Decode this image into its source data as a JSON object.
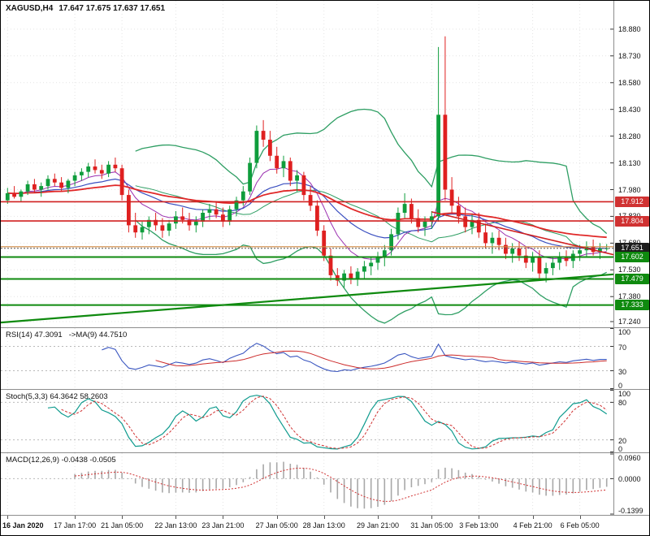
{
  "header": {
    "symbol_period": "XAGUSD,H4",
    "ohlc": "17.647 17.675 17.637 17.651"
  },
  "colors": {
    "background": "#ffffff",
    "grid": "#e4e4e4",
    "candle_up": "#0f9d3c",
    "candle_down": "#df2020",
    "separator": "#8e8e8e",
    "axis_text": "#111111",
    "tags": {
      "red": "#d03232",
      "green": "#0f8a0f",
      "black": "#1c1c1c"
    }
  },
  "chart_data": {
    "type": "candlestick",
    "symbol": "XAGUSD",
    "timeframe": "H4",
    "title": "XAGUSD,H4 17.647 17.675 17.637 17.651",
    "last_ohlc": {
      "open": 17.647,
      "high": 17.675,
      "low": 17.637,
      "close": 17.651
    },
    "current_price": 17.651,
    "price_range": {
      "min": 17.208,
      "max": 19.039
    },
    "price_axis": {
      "ticks": [
        18.88,
        18.73,
        18.58,
        18.43,
        18.28,
        18.13,
        17.98,
        17.83,
        17.68,
        17.53,
        17.38,
        17.24
      ],
      "tags": [
        {
          "text": "17.912",
          "price": 17.912,
          "type": "red"
        },
        {
          "text": "17.804",
          "price": 17.804,
          "type": "red"
        },
        {
          "text": "17.651",
          "price": 17.651,
          "type": "black"
        },
        {
          "text": "17.602",
          "price": 17.602,
          "type": "green"
        },
        {
          "text": "17.479",
          "price": 17.479,
          "type": "green"
        },
        {
          "text": "17.333",
          "price": 17.333,
          "type": "green"
        }
      ]
    },
    "time_labels": [
      {
        "text": "16 Jan 2020",
        "index": 0
      },
      {
        "text": "17 Jan 17:00",
        "index": 10
      },
      {
        "text": "21 Jan 05:00",
        "index": 17
      },
      {
        "text": "22 Jan 13:00",
        "index": 25
      },
      {
        "text": "23 Jan 21:00",
        "index": 32
      },
      {
        "text": "27 Jan 05:00",
        "index": 40
      },
      {
        "text": "28 Jan 13:00",
        "index": 47
      },
      {
        "text": "29 Jan 21:00",
        "index": 55
      },
      {
        "text": "31 Jan 05:00",
        "index": 63
      },
      {
        "text": "3 Feb 13:00",
        "index": 70
      },
      {
        "text": "4 Feb 21:00",
        "index": 78
      },
      {
        "text": "6 Feb 05:00",
        "index": 85
      }
    ],
    "candles": [
      [
        17.92,
        17.99,
        17.9,
        17.96
      ],
      [
        17.96,
        18.0,
        17.93,
        17.94
      ],
      [
        17.94,
        17.98,
        17.91,
        17.97
      ],
      [
        17.97,
        18.03,
        17.95,
        18.01
      ],
      [
        18.01,
        18.04,
        17.96,
        17.98
      ],
      [
        17.98,
        18.02,
        17.94,
        18.0
      ],
      [
        18.0,
        18.06,
        17.98,
        18.04
      ],
      [
        18.04,
        18.07,
        18.0,
        18.02
      ],
      [
        18.02,
        18.05,
        17.97,
        17.99
      ],
      [
        17.99,
        18.04,
        17.96,
        18.03
      ],
      [
        18.03,
        18.08,
        18.0,
        18.06
      ],
      [
        18.06,
        18.1,
        18.03,
        18.08
      ],
      [
        18.08,
        18.13,
        18.05,
        18.11
      ],
      [
        18.11,
        18.15,
        18.07,
        18.09
      ],
      [
        18.09,
        18.12,
        18.04,
        18.07
      ],
      [
        18.07,
        18.14,
        18.05,
        18.12
      ],
      [
        18.12,
        18.16,
        18.08,
        18.1
      ],
      [
        18.1,
        18.12,
        17.92,
        17.95
      ],
      [
        17.95,
        17.98,
        17.74,
        17.78
      ],
      [
        17.78,
        17.85,
        17.71,
        17.74
      ],
      [
        17.74,
        17.8,
        17.7,
        17.77
      ],
      [
        17.77,
        17.83,
        17.73,
        17.81
      ],
      [
        17.81,
        17.85,
        17.75,
        17.78
      ],
      [
        17.78,
        17.82,
        17.71,
        17.75
      ],
      [
        17.75,
        17.81,
        17.72,
        17.79
      ],
      [
        17.79,
        17.86,
        17.76,
        17.83
      ],
      [
        17.83,
        17.88,
        17.79,
        17.81
      ],
      [
        17.81,
        17.85,
        17.75,
        17.78
      ],
      [
        17.78,
        17.83,
        17.74,
        17.8
      ],
      [
        17.8,
        17.87,
        17.77,
        17.85
      ],
      [
        17.85,
        17.9,
        17.81,
        17.87
      ],
      [
        17.87,
        17.91,
        17.82,
        17.84
      ],
      [
        17.84,
        17.88,
        17.77,
        17.8
      ],
      [
        17.8,
        17.89,
        17.78,
        17.87
      ],
      [
        17.87,
        17.94,
        17.83,
        17.92
      ],
      [
        17.92,
        18.0,
        17.89,
        17.97
      ],
      [
        17.97,
        18.16,
        17.95,
        18.13
      ],
      [
        18.13,
        18.34,
        18.1,
        18.31
      ],
      [
        18.31,
        18.37,
        18.22,
        18.26
      ],
      [
        18.26,
        18.31,
        18.14,
        18.17
      ],
      [
        18.17,
        18.22,
        18.07,
        18.1
      ],
      [
        18.1,
        18.17,
        18.05,
        18.14
      ],
      [
        18.14,
        18.16,
        18.0,
        18.03
      ],
      [
        18.03,
        18.09,
        17.97,
        18.06
      ],
      [
        18.06,
        18.08,
        17.92,
        17.95
      ],
      [
        17.95,
        18.0,
        17.86,
        17.89
      ],
      [
        17.89,
        17.92,
        17.72,
        17.75
      ],
      [
        17.75,
        17.78,
        17.58,
        17.61
      ],
      [
        17.61,
        17.65,
        17.47,
        17.5
      ],
      [
        17.5,
        17.54,
        17.44,
        17.47
      ],
      [
        17.47,
        17.53,
        17.43,
        17.51
      ],
      [
        17.51,
        17.55,
        17.45,
        17.48
      ],
      [
        17.48,
        17.54,
        17.44,
        17.52
      ],
      [
        17.52,
        17.58,
        17.48,
        17.55
      ],
      [
        17.55,
        17.6,
        17.5,
        17.57
      ],
      [
        17.57,
        17.63,
        17.53,
        17.6
      ],
      [
        17.6,
        17.67,
        17.55,
        17.64
      ],
      [
        17.64,
        17.76,
        17.61,
        17.73
      ],
      [
        17.73,
        17.88,
        17.7,
        17.85
      ],
      [
        17.85,
        17.96,
        17.82,
        17.9
      ],
      [
        17.9,
        17.93,
        17.79,
        17.82
      ],
      [
        17.82,
        17.87,
        17.74,
        17.77
      ],
      [
        17.77,
        17.83,
        17.72,
        17.8
      ],
      [
        17.8,
        17.86,
        17.76,
        17.83
      ],
      [
        17.83,
        18.78,
        17.8,
        18.4
      ],
      [
        18.4,
        18.84,
        17.92,
        17.98
      ],
      [
        17.98,
        18.05,
        17.85,
        17.89
      ],
      [
        17.89,
        17.94,
        17.79,
        17.83
      ],
      [
        17.83,
        17.88,
        17.74,
        17.77
      ],
      [
        17.77,
        17.84,
        17.73,
        17.81
      ],
      [
        17.81,
        17.85,
        17.71,
        17.74
      ],
      [
        17.74,
        17.79,
        17.65,
        17.68
      ],
      [
        17.68,
        17.74,
        17.62,
        17.71
      ],
      [
        17.71,
        17.75,
        17.64,
        17.67
      ],
      [
        17.67,
        17.71,
        17.59,
        17.62
      ],
      [
        17.62,
        17.68,
        17.57,
        17.65
      ],
      [
        17.65,
        17.69,
        17.58,
        17.61
      ],
      [
        17.61,
        17.66,
        17.54,
        17.57
      ],
      [
        17.57,
        17.63,
        17.52,
        17.6
      ],
      [
        17.6,
        17.64,
        17.47,
        17.51
      ],
      [
        17.51,
        17.57,
        17.46,
        17.54
      ],
      [
        17.54,
        17.6,
        17.5,
        17.57
      ],
      [
        17.57,
        17.63,
        17.53,
        17.6
      ],
      [
        17.6,
        17.64,
        17.55,
        17.58
      ],
      [
        17.58,
        17.64,
        17.54,
        17.62
      ],
      [
        17.62,
        17.67,
        17.58,
        17.64
      ],
      [
        17.64,
        17.69,
        17.6,
        17.66
      ],
      [
        17.66,
        17.7,
        17.61,
        17.63
      ],
      [
        17.63,
        17.68,
        17.59,
        17.65
      ],
      [
        17.647,
        17.675,
        17.637,
        17.651
      ]
    ],
    "overlays": {
      "bollinger": {
        "period": 20,
        "deviation": 2,
        "color": "#2e9e63"
      },
      "moving_averages": [
        {
          "method": "ema",
          "period": 8,
          "color": "#9b30b0",
          "width": 1
        },
        {
          "method": "ema",
          "period": 20,
          "color": "#3a4fc0",
          "width": 1.2
        },
        {
          "method": "ema",
          "period": 45,
          "color": "#e02828",
          "width": 1.8
        }
      ],
      "horizontal_levels": [
        {
          "price": 17.912,
          "color": "#d02020",
          "width": 1.6
        },
        {
          "price": 17.804,
          "color": "#d02020",
          "width": 1.6
        },
        {
          "price": 17.66,
          "color": "#cd853f",
          "width": 1.2
        },
        {
          "price": 17.602,
          "color": "#0f8a0f",
          "width": 2
        },
        {
          "price": 17.479,
          "color": "#0f8a0f",
          "width": 2
        },
        {
          "price": 17.333,
          "color": "#0f8a0f",
          "width": 2
        }
      ],
      "trendlines": [
        {
          "from_index": -1,
          "from_price": 17.235,
          "to_index": 95,
          "to_price": 17.505,
          "color": "#0f8a0f",
          "width": 2.2
        },
        {
          "from_index": 63,
          "from_price": 17.855,
          "to_index": 95,
          "to_price": 17.615,
          "color": "#d02020",
          "width": 1.6
        }
      ]
    },
    "indicators": {
      "rsi": {
        "period": 14,
        "value": 47.3091,
        "ma_period": 9,
        "ma_value": 44.751,
        "levels": [
          70,
          30
        ],
        "scale": [
          0,
          100
        ],
        "color": "#3a56c0",
        "ma_color": "#cc2a2a"
      },
      "stoch": {
        "k": 5,
        "d": 3,
        "slowing": 3,
        "value": 64.3642,
        "signal_value": 58.2603,
        "levels": [
          80,
          20
        ],
        "scale": [
          0,
          100
        ],
        "k_color": "#0f9b8e",
        "d_color": "#d03232"
      },
      "macd": {
        "fast": 12,
        "slow": 26,
        "signal": 9,
        "value": -0.0438,
        "signal_value": -0.0505,
        "hist_color": "#a8a8a8",
        "signal_color": "#d03232"
      }
    }
  },
  "panels": {
    "rsi": {
      "name_label": "RSI(14) 47.3091",
      "ma_label": "->MA(9) 44.7510",
      "axis": [
        "100",
        "70",
        "30",
        "0"
      ],
      "axis_values": [
        100,
        70,
        30,
        0
      ]
    },
    "stoch": {
      "label": "Stoch(5,3,3) 64.3642 58.2603",
      "axis": [
        "100",
        "80",
        "20",
        "0"
      ],
      "axis_values": [
        100,
        80,
        20,
        0
      ]
    },
    "macd": {
      "label": "MACD(12,26,9) -0.0438 -0.0505",
      "axis_top": "0.0960",
      "axis_zero": "0.0000",
      "axis_bottom": "-0.1399"
    }
  }
}
